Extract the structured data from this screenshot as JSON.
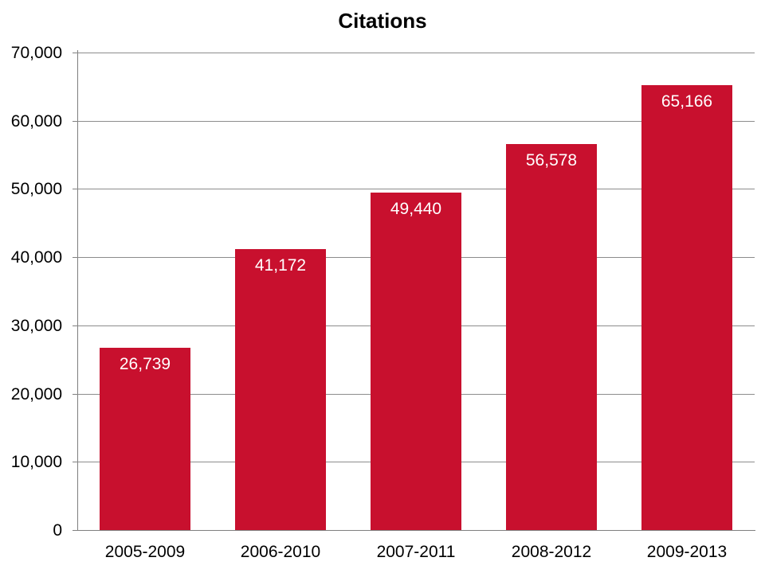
{
  "page": {
    "background_color": "#FFFFFF"
  },
  "chart_data": {
    "type": "bar",
    "title": "Citations",
    "categories": [
      "2005-2009",
      "2006-2010",
      "2007-2011",
      "2008-2012",
      "2009-2013"
    ],
    "values": [
      26739,
      41172,
      49440,
      56578,
      65166
    ],
    "value_labels": [
      "26,739",
      "41,172",
      "49,440",
      "56,578",
      "65,166"
    ],
    "y_ticks": [
      {
        "value": 0,
        "label": "0"
      },
      {
        "value": 10000,
        "label": "10,000"
      },
      {
        "value": 20000,
        "label": "20,000"
      },
      {
        "value": 30000,
        "label": "30,000"
      },
      {
        "value": 40000,
        "label": "40,000"
      },
      {
        "value": 50000,
        "label": "50,000"
      },
      {
        "value": 60000,
        "label": "60,000"
      },
      {
        "value": 70000,
        "label": "70,000"
      }
    ],
    "ylim": [
      0,
      70000
    ],
    "xlabel": "",
    "ylabel": "",
    "grid": true,
    "legend": false,
    "bar_color": "#C8102E",
    "bar_label_color": "#FFFFFF",
    "axis_color": "#7F7F7F",
    "gridline_color": "#8C8C8C",
    "title_color": "#000000",
    "tick_label_color": "#000000"
  }
}
